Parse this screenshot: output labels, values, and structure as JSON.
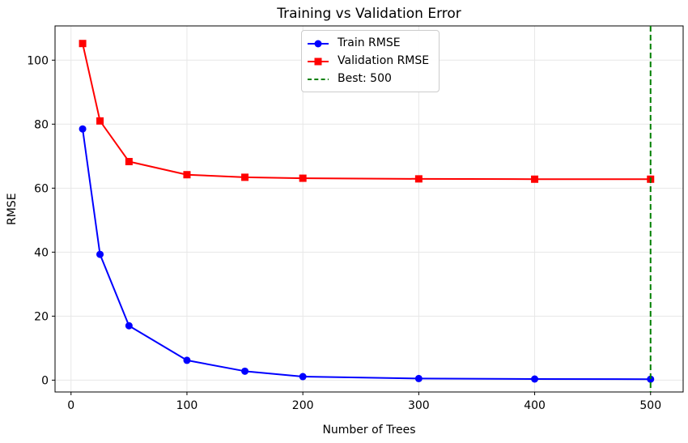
{
  "chart_data": {
    "type": "line",
    "title": "Training vs Validation Error",
    "xlabel": "Number of Trees",
    "ylabel": "RMSE",
    "x": [
      10,
      25,
      50,
      100,
      150,
      200,
      300,
      400,
      500
    ],
    "series": [
      {
        "name": "Train RMSE",
        "color": "#0000ff",
        "marker": "circle",
        "linestyle": "solid",
        "values": [
          78.5,
          39.3,
          17.0,
          6.2,
          2.8,
          1.1,
          0.5,
          0.35,
          0.3
        ]
      },
      {
        "name": "Validation RMSE",
        "color": "#ff0000",
        "marker": "square",
        "linestyle": "solid",
        "values": [
          105.2,
          81.0,
          68.3,
          64.2,
          63.4,
          63.1,
          62.9,
          62.8,
          62.8
        ]
      }
    ],
    "vline": {
      "x": 500,
      "label": "Best: 500",
      "color": "#008000",
      "linestyle": "dashed"
    },
    "xticks": [
      0,
      100,
      200,
      300,
      400,
      500
    ],
    "yticks": [
      0,
      20,
      40,
      60,
      80,
      100
    ],
    "xlim": [
      -13.8,
      528.1
    ],
    "ylim": [
      -3.7,
      110.7
    ],
    "grid": true,
    "grid_color": "#e7e7e7",
    "axis_color": "#000000",
    "legend_position": "upper center"
  }
}
